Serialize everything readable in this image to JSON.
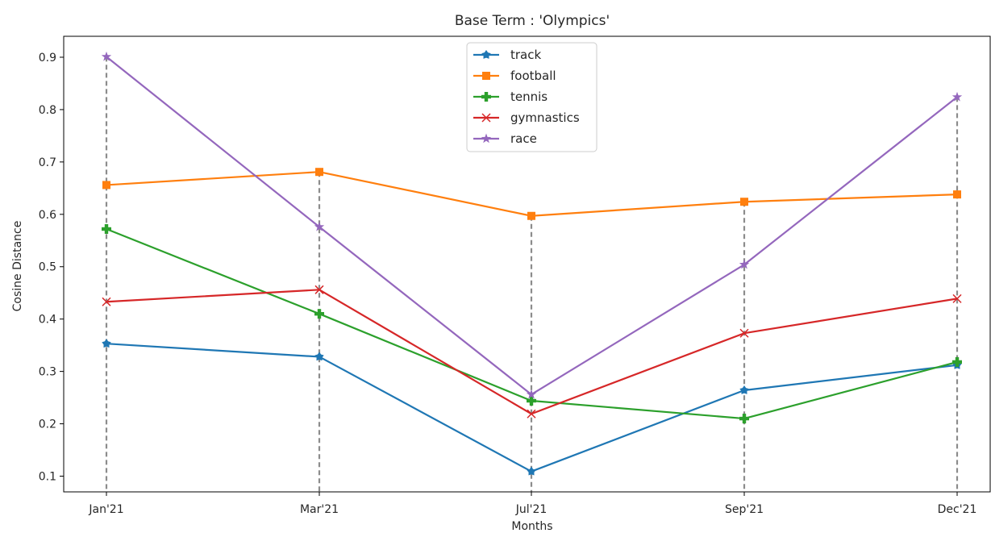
{
  "chart_data": {
    "type": "line",
    "title": "Base Term : 'Olympics'",
    "xlabel": "Months",
    "ylabel": "Cosine Distance",
    "categories": [
      "Jan'21",
      "Mar'21",
      "Jul'21",
      "Sep'21",
      "Dec'21"
    ],
    "ylim": [
      0.07,
      0.94
    ],
    "yticks": [
      0.1,
      0.2,
      0.3,
      0.4,
      0.5,
      0.6,
      0.7,
      0.8,
      0.9
    ],
    "ytick_labels": [
      "0.1",
      "0.2",
      "0.3",
      "0.4",
      "0.5",
      "0.6",
      "0.7",
      "0.8",
      "0.9"
    ],
    "grid": false,
    "vertical_dashed_lines": true,
    "legend_position": "top-center",
    "series": [
      {
        "name": "track",
        "color": "#1f77b4",
        "marker": "pentagon-star",
        "values": [
          0.353,
          0.328,
          0.109,
          0.264,
          0.312
        ]
      },
      {
        "name": "football",
        "color": "#ff7f0e",
        "marker": "square",
        "values": [
          0.656,
          0.681,
          0.597,
          0.624,
          0.638
        ]
      },
      {
        "name": "tennis",
        "color": "#2ca02c",
        "marker": "plus",
        "values": [
          0.572,
          0.41,
          0.244,
          0.21,
          0.318
        ]
      },
      {
        "name": "gymnastics",
        "color": "#d62728",
        "marker": "x",
        "values": [
          0.433,
          0.456,
          0.219,
          0.373,
          0.439
        ]
      },
      {
        "name": "race",
        "color": "#9467bd",
        "marker": "star",
        "values": [
          0.901,
          0.576,
          0.256,
          0.504,
          0.824
        ]
      }
    ]
  }
}
